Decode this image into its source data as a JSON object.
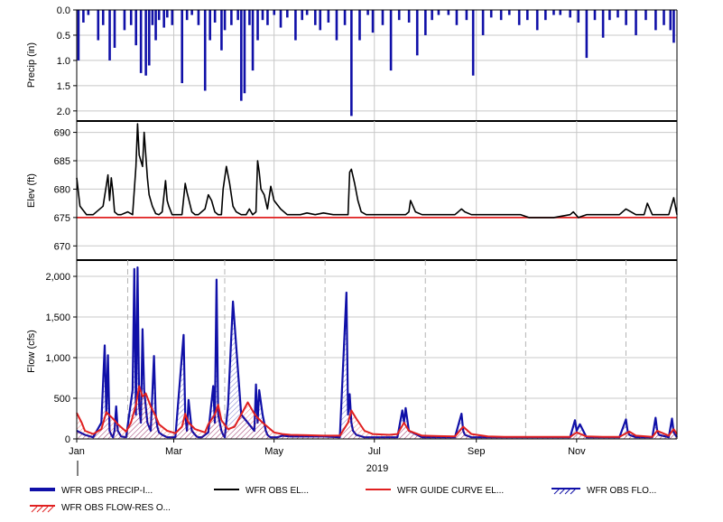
{
  "chart_data": [
    {
      "type": "bar",
      "name": "precip-panel",
      "ylabel": "Precip (in)",
      "ylim": [
        0,
        2.2
      ],
      "y_inverted": true,
      "yticks": [
        "0.0",
        "0.5",
        "1.0",
        "1.5",
        "2.0"
      ],
      "ytick_values": [
        0,
        0.5,
        1.0,
        1.5,
        2.0
      ],
      "color": "#1010a8",
      "series": [
        {
          "name": "WFR OBS PRECIP-INC",
          "x_day": [
            1,
            4,
            7,
            13,
            16,
            20,
            23,
            29,
            33,
            36,
            39,
            42,
            44,
            46,
            48,
            50,
            53,
            55,
            58,
            64,
            67,
            70,
            74,
            78,
            81,
            84,
            88,
            90,
            94,
            98,
            100,
            102,
            105,
            107,
            110,
            113,
            116,
            120,
            124,
            128,
            133,
            137,
            140,
            145,
            148,
            153,
            158,
            163,
            167,
            172,
            177,
            180,
            186,
            191,
            196,
            202,
            207,
            212,
            216,
            220,
            226,
            231,
            237,
            241,
            247,
            252,
            258,
            263,
            269,
            274,
            280,
            285,
            290,
            294,
            300,
            305,
            310,
            315,
            320,
            324,
            329,
            334,
            340,
            346,
            352,
            357,
            361,
            363
          ],
          "values": [
            1.0,
            0.25,
            0.1,
            0.6,
            0.3,
            1.0,
            0.75,
            0.4,
            0.3,
            0.7,
            1.25,
            1.3,
            1.1,
            0.3,
            0.6,
            0.2,
            0.35,
            0.15,
            0.3,
            1.45,
            0.2,
            0.1,
            0.3,
            1.6,
            0.6,
            0.25,
            0.8,
            0.4,
            0.3,
            0.2,
            1.8,
            1.65,
            0.3,
            1.2,
            0.6,
            0.2,
            0.3,
            0.1,
            0.35,
            0.15,
            0.6,
            0.2,
            0.1,
            0.3,
            0.4,
            0.25,
            0.6,
            0.3,
            2.1,
            0.6,
            0.1,
            0.45,
            0.3,
            1.2,
            0.2,
            0.25,
            0.9,
            0.5,
            0.2,
            0.1,
            0.1,
            0.3,
            0.2,
            1.3,
            0.5,
            0.15,
            0.2,
            0.1,
            0.3,
            0.2,
            0.4,
            0.2,
            0.1,
            0.1,
            0.15,
            0.25,
            0.95,
            0.2,
            0.55,
            0.2,
            0.15,
            0.3,
            0.5,
            0.2,
            0.4,
            0.3,
            0.4,
            0.65
          ]
        }
      ]
    },
    {
      "type": "line",
      "name": "elev-panel",
      "ylabel": "Elev (ft)",
      "ylim": [
        667.5,
        692
      ],
      "yticks": [
        "670",
        "675",
        "680",
        "685",
        "690"
      ],
      "ytick_values": [
        670,
        675,
        680,
        685,
        690
      ],
      "series": [
        {
          "name": "WFR OBS ELEV",
          "color": "#000000",
          "x_day": [
            0,
            2,
            6,
            10,
            16,
            19,
            20,
            21,
            22,
            23,
            25,
            27,
            31,
            34,
            36,
            37,
            38,
            40,
            41,
            42,
            43,
            44,
            46,
            48,
            50,
            52,
            54,
            55,
            56,
            58,
            60,
            64,
            66,
            67,
            70,
            72,
            74,
            78,
            80,
            82,
            84,
            86,
            88,
            89,
            91,
            93,
            95,
            97,
            100,
            103,
            105,
            106,
            107,
            109,
            110,
            111,
            112,
            114,
            116,
            118,
            120,
            124,
            128,
            132,
            136,
            140,
            145,
            150,
            156,
            162,
            165,
            166,
            167,
            169,
            171,
            173,
            176,
            180,
            186,
            190,
            196,
            200,
            202,
            203,
            206,
            210,
            220,
            230,
            234,
            236,
            240,
            250,
            260,
            270,
            275,
            280,
            290,
            300,
            302,
            305,
            310,
            320,
            330,
            334,
            340,
            345,
            347,
            350,
            355,
            360,
            363,
            365
          ],
          "values": [
            682,
            677,
            675.5,
            675.5,
            677,
            682.5,
            678,
            682,
            679.5,
            676,
            675.5,
            675.5,
            676,
            675.5,
            684,
            691.5,
            686,
            684,
            690,
            686,
            682,
            679,
            677,
            675.7,
            675.5,
            676,
            681.5,
            678,
            677,
            675.5,
            675.5,
            675.5,
            681,
            679.5,
            676,
            675.5,
            675.5,
            676.5,
            679,
            678,
            676,
            675.5,
            675.5,
            680,
            684,
            681,
            677,
            676,
            675.5,
            675.5,
            676.5,
            676,
            675.5,
            676,
            685,
            683,
            680,
            679,
            676.5,
            680.5,
            678,
            676.5,
            675.5,
            675.5,
            675.5,
            675.8,
            675.5,
            675.8,
            675.5,
            675.5,
            675.5,
            683,
            683.5,
            681,
            678,
            676,
            675.5,
            675.5,
            675.5,
            675.5,
            675.5,
            675.5,
            676,
            678,
            676,
            675.5,
            675.5,
            675.5,
            676.5,
            676,
            675.5,
            675.5,
            675.5,
            675.5,
            675,
            675,
            675,
            675.5,
            676,
            675,
            675.5,
            675.5,
            675.5,
            676.5,
            675.5,
            675.5,
            677.5,
            675.5,
            675.5,
            675.5,
            678.5,
            675.5
          ]
        },
        {
          "name": "WFR GUIDE CURVE ELEV",
          "color": "#e02020",
          "x_day": [
            0,
            365
          ],
          "values": [
            675,
            675
          ]
        }
      ]
    },
    {
      "type": "line",
      "name": "flow-panel",
      "ylabel": "Flow (cfs)",
      "ylim": [
        0,
        2200
      ],
      "yticks": [
        "0",
        "500",
        "1,000",
        "1,500",
        "2,000"
      ],
      "ytick_values": [
        0,
        500,
        1000,
        1500,
        2000
      ],
      "xlabel": "2019",
      "xticks": [
        "Jan",
        "Mar",
        "May",
        "Jul",
        "Sep",
        "Nov"
      ],
      "xtick_days": [
        0,
        59,
        120,
        181,
        243,
        304
      ],
      "dashed_gridlines_days": [
        31,
        90,
        151,
        212,
        273,
        334
      ],
      "series": [
        {
          "name": "WFR OBS FLOW",
          "color": "#1010a8",
          "x_day": [
            0,
            5,
            10,
            15,
            17,
            18,
            19,
            20,
            21,
            22,
            23,
            24,
            25,
            27,
            30,
            34,
            35,
            36,
            37,
            38,
            39,
            40,
            41,
            42,
            43,
            45,
            47,
            48,
            49,
            50,
            52,
            55,
            60,
            65,
            66,
            67,
            68,
            70,
            72,
            73,
            74,
            76,
            80,
            83,
            84,
            85,
            86,
            88,
            89,
            90,
            92,
            95,
            100,
            108,
            109,
            110,
            111,
            113,
            115,
            116,
            117,
            118,
            120,
            122,
            125,
            130,
            140,
            150,
            160,
            164,
            165,
            166,
            167,
            168,
            170,
            175,
            180,
            190,
            195,
            198,
            199,
            200,
            202,
            210,
            220,
            230,
            234,
            235,
            236,
            240,
            250,
            260,
            270,
            280,
            290,
            300,
            303,
            304,
            306,
            310,
            320,
            330,
            334,
            335,
            336,
            340,
            350,
            352,
            353,
            354,
            360,
            362,
            363,
            365
          ],
          "values": [
            100,
            50,
            20,
            200,
            1150,
            300,
            1030,
            100,
            50,
            20,
            100,
            400,
            100,
            30,
            20,
            600,
            2090,
            300,
            2110,
            400,
            200,
            1350,
            600,
            400,
            200,
            100,
            1020,
            300,
            150,
            80,
            50,
            20,
            20,
            1280,
            300,
            100,
            480,
            100,
            50,
            30,
            20,
            20,
            80,
            650,
            200,
            1960,
            300,
            100,
            50,
            20,
            400,
            1690,
            300,
            100,
            670,
            200,
            600,
            300,
            100,
            50,
            30,
            20,
            20,
            20,
            40,
            30,
            30,
            30,
            20,
            1800,
            300,
            550,
            200,
            100,
            50,
            20,
            20,
            20,
            20,
            350,
            200,
            380,
            100,
            20,
            20,
            20,
            310,
            100,
            50,
            20,
            20,
            20,
            20,
            20,
            20,
            20,
            230,
            100,
            180,
            20,
            20,
            20,
            240,
            100,
            50,
            20,
            20,
            260,
            100,
            50,
            20,
            250,
            80,
            20
          ]
        },
        {
          "name": "WFR OBS FLOW-RES OUT",
          "color": "#e02020",
          "x_day": [
            0,
            3,
            5,
            10,
            15,
            18,
            20,
            22,
            25,
            30,
            33,
            36,
            38,
            40,
            42,
            45,
            48,
            50,
            55,
            60,
            64,
            66,
            68,
            72,
            78,
            80,
            84,
            86,
            88,
            92,
            96,
            100,
            104,
            108,
            110,
            113,
            116,
            120,
            125,
            130,
            140,
            150,
            160,
            165,
            167,
            170,
            175,
            180,
            190,
            195,
            199,
            202,
            210,
            220,
            230,
            235,
            240,
            250,
            260,
            270,
            280,
            290,
            300,
            304,
            310,
            320,
            330,
            336,
            340,
            350,
            353,
            360,
            363,
            365
          ],
          "values": [
            320,
            200,
            100,
            60,
            120,
            330,
            290,
            250,
            180,
            90,
            200,
            420,
            650,
            520,
            560,
            400,
            280,
            180,
            100,
            70,
            150,
            310,
            200,
            120,
            80,
            180,
            300,
            420,
            230,
            120,
            150,
            300,
            450,
            310,
            260,
            200,
            150,
            80,
            60,
            50,
            45,
            40,
            40,
            200,
            350,
            250,
            100,
            60,
            50,
            60,
            200,
            100,
            40,
            35,
            30,
            150,
            60,
            30,
            25,
            25,
            25,
            25,
            25,
            80,
            30,
            25,
            25,
            90,
            40,
            25,
            100,
            40,
            120,
            60
          ]
        }
      ]
    }
  ],
  "legend": [
    {
      "label": "WFR OBS PRECIP-I...",
      "style": "thick-blue"
    },
    {
      "label": "WFR OBS EL...",
      "style": "black-line"
    },
    {
      "label": "WFR GUIDE CURVE EL...",
      "style": "red-line"
    },
    {
      "label": "WFR OBS FLO...",
      "style": "blue-hatch"
    },
    {
      "label": "WFR OBS FLOW-RES O...",
      "style": "red-hatch"
    }
  ],
  "colors": {
    "precip": "#1010a8",
    "elev": "#000000",
    "guide": "#e02020",
    "flow": "#1010a8",
    "res_out": "#e02020",
    "grid": "#c8c8c8",
    "grid_dashed": "#b4b4b4"
  }
}
